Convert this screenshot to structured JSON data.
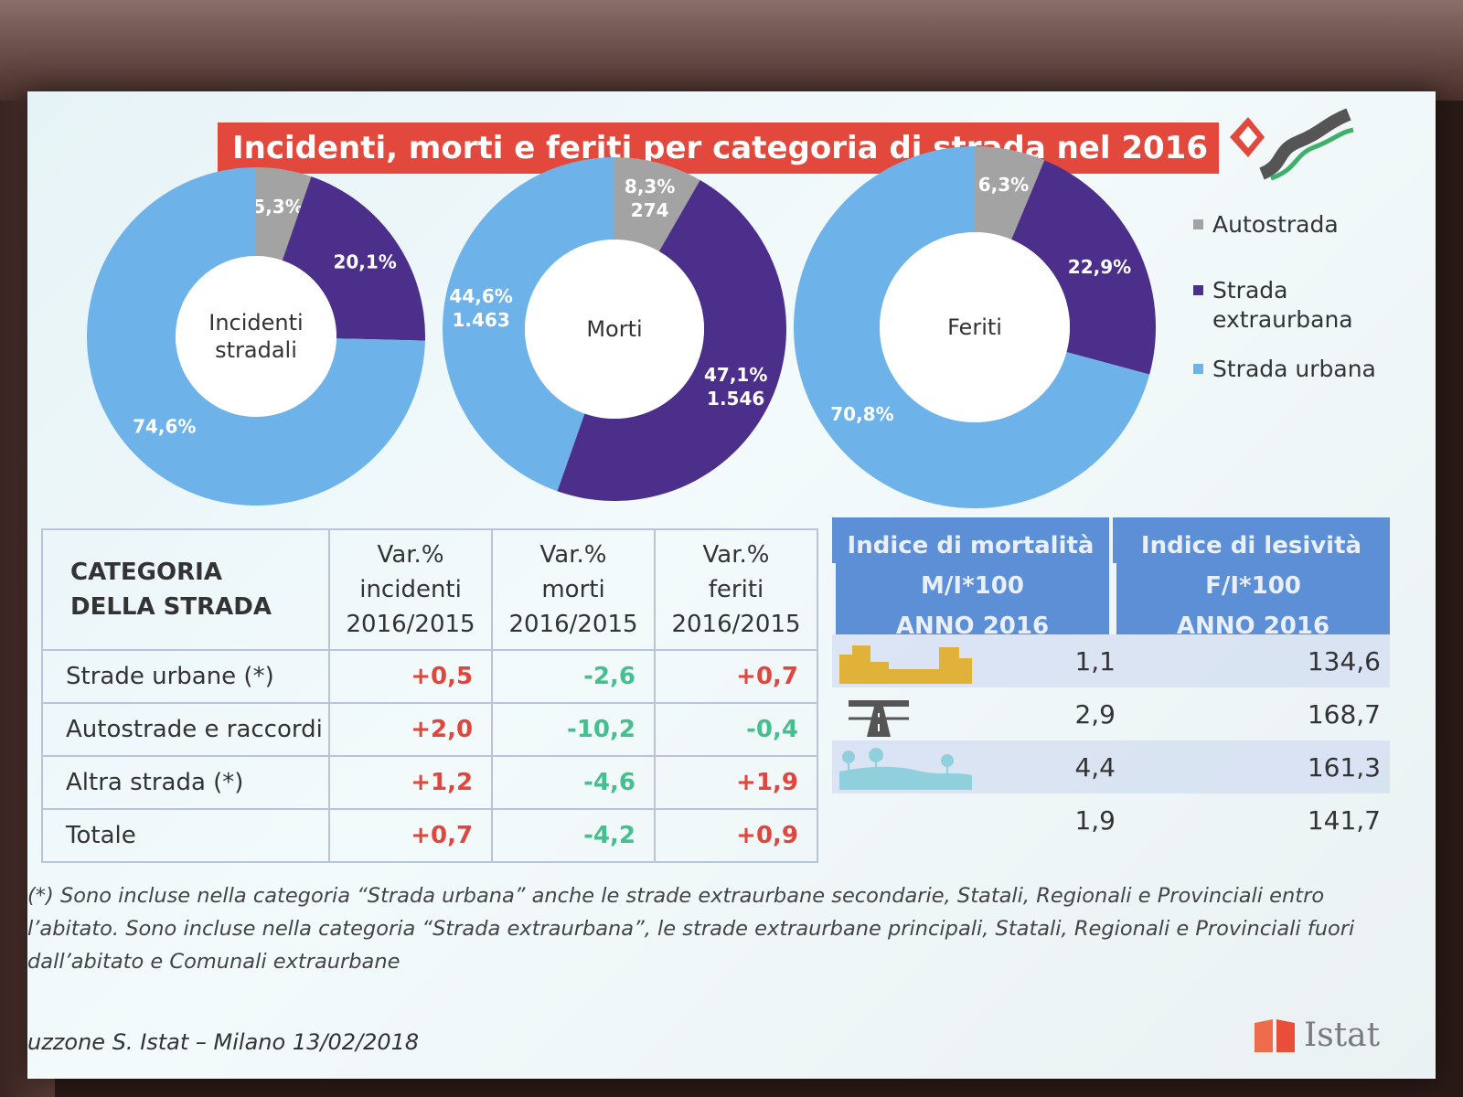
{
  "title": "Incidenti, morti e feriti per categoria di strada nel 2016",
  "colors": {
    "autostrada": "#a3a3a3",
    "extraurbana": "#4c2f8a",
    "urbana": "#6db3ea",
    "positive": "#e0463e",
    "negative": "#43c08e",
    "header": "#5d8fd6",
    "title_bar": "#e2483c"
  },
  "legend": {
    "items": [
      {
        "label": "Autostrada",
        "color": "#a3a3a3"
      },
      {
        "label": "Strada extraurbana",
        "color": "#4c2f8a"
      },
      {
        "label": "Strada urbana",
        "color": "#6db3ea"
      }
    ]
  },
  "chart_data": [
    {
      "type": "pie",
      "title": "Incidenti stradali",
      "categories": [
        "Autostrada",
        "Strada extraurbana",
        "Strada urbana"
      ],
      "values": [
        5.3,
        20.1,
        74.6
      ],
      "labels": [
        "5,3%",
        "20,1%",
        "74,6%"
      ],
      "sublabels": [
        "",
        "",
        ""
      ]
    },
    {
      "type": "pie",
      "title": "Morti",
      "categories": [
        "Autostrada",
        "Strada extraurbana",
        "Strada urbana"
      ],
      "values": [
        8.3,
        47.1,
        44.6
      ],
      "labels": [
        "8,3%",
        "47,1%",
        "44,6%"
      ],
      "sublabels": [
        "274",
        "1.546",
        "1.463"
      ]
    },
    {
      "type": "pie",
      "title": "Feriti",
      "categories": [
        "Autostrada",
        "Strada extraurbana",
        "Strada urbana"
      ],
      "values": [
        6.3,
        22.9,
        70.8
      ],
      "labels": [
        "6,3%",
        "22,9%",
        "70,8%"
      ],
      "sublabels": [
        "",
        "",
        ""
      ]
    },
    {
      "type": "table",
      "columns": [
        "CATEGORIA DELLA STRADA",
        "Var.% incidenti 2016/2015",
        "Var.% morti 2016/2015",
        "Var.% feriti 2016/2015"
      ],
      "rows": [
        {
          "name": "Strade urbane (*)",
          "incidenti": "+0,5",
          "morti": "-2,6",
          "feriti": "+0,7"
        },
        {
          "name": "Autostrade e raccordi",
          "incidenti": "+2,0",
          "morti": "-10,2",
          "feriti": "-0,4"
        },
        {
          "name": "Altra strada (*)",
          "incidenti": "+1,2",
          "morti": "-4,6",
          "feriti": "+1,9"
        },
        {
          "name": "Totale",
          "incidenti": "+0,7",
          "morti": "-4,2",
          "feriti": "+0,9"
        }
      ]
    },
    {
      "type": "table",
      "columns": [
        "Indice di mortalità M/I*100 ANNO 2016",
        "Indice di lesività F/I*100 ANNO 2016"
      ],
      "rows": [
        {
          "icon": "city-skyline-icon",
          "mortalita": "1,1",
          "lesivita": "134,6"
        },
        {
          "icon": "motorway-icon",
          "mortalita": "2,9",
          "lesivita": "168,7"
        },
        {
          "icon": "countryside-icon",
          "mortalita": "4,4",
          "lesivita": "161,3"
        },
        {
          "icon": "",
          "mortalita": "1,9",
          "lesivita": "141,7"
        }
      ]
    }
  ],
  "table": {
    "header_cat_line1": "CATEGORIA",
    "header_cat_line2": "DELLA STRADA",
    "header_var": "Var.%",
    "header_incidenti": "incidenti",
    "header_morti": "morti",
    "header_feriti": "feriti",
    "header_period": "2016/2015"
  },
  "index_table": {
    "mortalita_line1": "Indice di mortalità",
    "mortalita_line2": "M/I*100",
    "lesivita_line1": "Indice di lesività",
    "lesivita_line2": "F/I*100",
    "year_line": "ANNO 2016"
  },
  "footnote": "(*) Sono incluse nella categoria “Strada urbana” anche le strade extraurbane secondarie, Statali, Regionali e Provinciali entro l’abitato. Sono incluse nella categoria “Strada extraurbana”, le strade extraurbane principali, Statali, Regionali e Provinciali fuori dall’abitato e Comunali extraurbane",
  "credit": "uzzone S. Istat –  Milano 13/02/2018",
  "brand": "Istat"
}
